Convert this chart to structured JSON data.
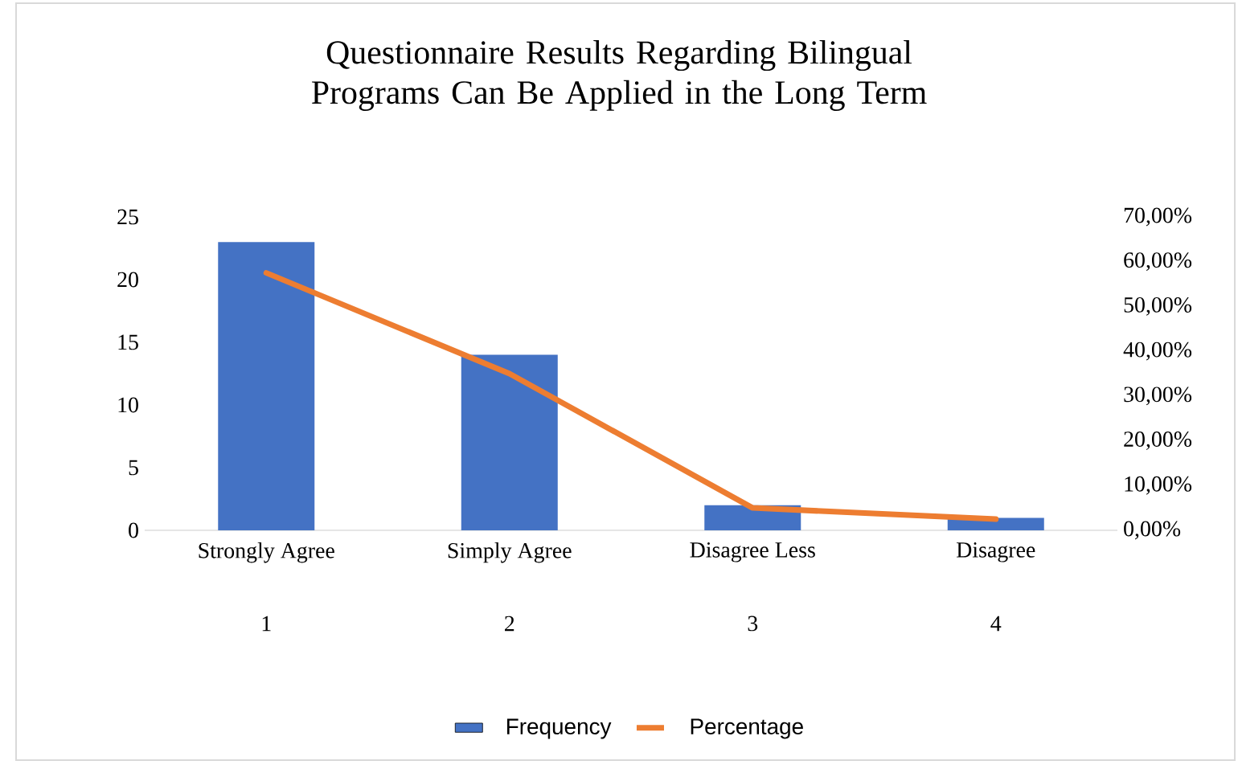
{
  "chart_data": {
    "type": "bar",
    "title": "Questionnaire Results Regarding Bilingual Programs Can Be Applied in the Long Term",
    "categories": [
      "Strongly Agree",
      "Simply Agree",
      "Disagree Less",
      "Disagree"
    ],
    "series": [
      {
        "name": "Frequency",
        "color": "#4472c4",
        "values": [
          23,
          14,
          2,
          1
        ]
      },
      {
        "name": "Percentage",
        "type": "line",
        "axis": "y2",
        "color": "#ed7d31",
        "values": [
          57.5,
          35,
          5,
          2.5
        ]
      }
    ],
    "ylim": [
      0,
      25
    ],
    "yticks": [
      0,
      5,
      10,
      15,
      20,
      25
    ],
    "y2lim": [
      0,
      70
    ],
    "y2ticks": [
      {
        "value": 0,
        "label": "0,00%"
      },
      {
        "value": 10,
        "label": "10,00%"
      },
      {
        "value": 20,
        "label": "20,00%"
      },
      {
        "value": 30,
        "label": "30,00%"
      },
      {
        "value": 40,
        "label": "40,00%"
      },
      {
        "value": 50,
        "label": "50,00%"
      },
      {
        "value": 60,
        "label": "60,00%"
      },
      {
        "value": 70,
        "label": "70,00%"
      }
    ],
    "legend": "bottom",
    "grid": false,
    "marker": "none",
    "annotations": [
      "1",
      "2",
      "3",
      "4"
    ]
  }
}
